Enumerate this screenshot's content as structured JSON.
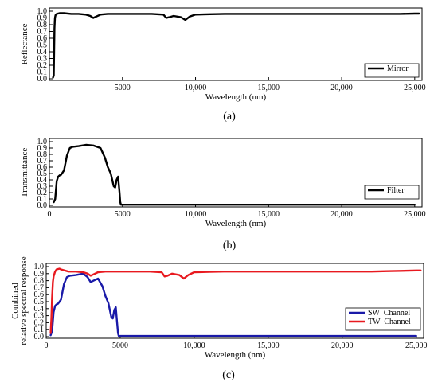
{
  "chart_data": [
    {
      "type": "line",
      "panel_label": "(a)",
      "xlabel": "Wavelength (nm)",
      "ylabel": "Reflectance",
      "xlim": [
        0,
        25500
      ],
      "ylim": [
        0,
        1.0
      ],
      "xticks": [
        5000,
        10000,
        15000,
        20000,
        25000
      ],
      "xtick_labels": [
        "5000",
        "10,000",
        "15,000",
        "20,000",
        "25,000"
      ],
      "yticks": [
        0,
        0.1,
        0.2,
        0.3,
        0.4,
        0.5,
        0.6,
        0.7,
        0.8,
        0.9,
        1.0
      ],
      "ytick_labels": [
        "0.0",
        "0.1",
        "0.2",
        "0.3",
        "0.4",
        "0.5",
        "0.6",
        "0.7",
        "0.8",
        "0.9",
        "1.0"
      ],
      "grid": false,
      "legend_position": "bottom-right",
      "series": [
        {
          "name": "Mirror",
          "color": "#000000",
          "x": [
            250,
            300,
            320,
            350,
            380,
            420,
            500,
            700,
            1000,
            1500,
            2000,
            2500,
            2800,
            3000,
            3200,
            3500,
            4000,
            5000,
            6000,
            7000,
            7800,
            8000,
            8200,
            8500,
            9000,
            9300,
            9600,
            10000,
            11000,
            12000,
            13000,
            14000,
            15000,
            16000,
            17000,
            18000,
            19000,
            20000,
            21000,
            22000,
            23000,
            24000,
            25000,
            25300
          ],
          "y": [
            0.02,
            0.05,
            0.35,
            0.75,
            0.9,
            0.94,
            0.96,
            0.97,
            0.97,
            0.96,
            0.96,
            0.95,
            0.93,
            0.9,
            0.92,
            0.95,
            0.96,
            0.96,
            0.96,
            0.96,
            0.95,
            0.9,
            0.91,
            0.93,
            0.91,
            0.87,
            0.92,
            0.95,
            0.955,
            0.96,
            0.96,
            0.96,
            0.96,
            0.96,
            0.96,
            0.96,
            0.96,
            0.96,
            0.96,
            0.96,
            0.96,
            0.96,
            0.965,
            0.965
          ]
        }
      ]
    },
    {
      "type": "line",
      "panel_label": "(b)",
      "xlabel": "Wavelength (nm)",
      "ylabel": "Transmittance",
      "xlim": [
        0,
        25500
      ],
      "ylim": [
        0,
        1.0
      ],
      "xticks": [
        0,
        5000,
        10000,
        15000,
        20000,
        25000
      ],
      "xtick_labels": [
        "0",
        "5000",
        "10,000",
        "15,000",
        "20,000",
        "25,000"
      ],
      "yticks": [
        0,
        0.1,
        0.2,
        0.3,
        0.4,
        0.5,
        0.6,
        0.7,
        0.8,
        0.9,
        1.0
      ],
      "ytick_labels": [
        "0.0",
        "0.1",
        "0.2",
        "0.3",
        "0.4",
        "0.5",
        "0.6",
        "0.7",
        "0.8",
        "0.9",
        "1.0"
      ],
      "grid": false,
      "legend_position": "bottom-right",
      "series": [
        {
          "name": "Filter",
          "color": "#000000",
          "x": [
            300,
            400,
            500,
            600,
            700,
            800,
            1000,
            1200,
            1400,
            1600,
            2000,
            2500,
            3000,
            3500,
            3800,
            4000,
            4200,
            4400,
            4500,
            4600,
            4700,
            4800,
            4850,
            4900,
            5000,
            6000,
            10000,
            15000,
            20000,
            25000
          ],
          "y": [
            0.05,
            0.1,
            0.38,
            0.45,
            0.47,
            0.48,
            0.55,
            0.78,
            0.9,
            0.92,
            0.93,
            0.95,
            0.94,
            0.9,
            0.75,
            0.6,
            0.5,
            0.3,
            0.28,
            0.4,
            0.45,
            0.2,
            0.05,
            0.01,
            0.01,
            0.01,
            0.01,
            0.01,
            0.01,
            0.01
          ]
        }
      ]
    },
    {
      "type": "line",
      "panel_label": "(c)",
      "xlabel": "Wavelength (nm)",
      "ylabel_lines": [
        "Combined",
        "relative spectral response"
      ],
      "xlim": [
        0,
        25500
      ],
      "ylim": [
        0,
        1.0
      ],
      "xticks": [
        0,
        5000,
        10000,
        15000,
        20000,
        25000
      ],
      "xtick_labels": [
        "0",
        "5000",
        "10,000",
        "15,000",
        "20,000",
        "25,000"
      ],
      "yticks": [
        0,
        0.1,
        0.2,
        0.3,
        0.4,
        0.5,
        0.6,
        0.7,
        0.8,
        0.9,
        1.0
      ],
      "ytick_labels": [
        "0.0",
        "0.1",
        "0.2",
        "0.3",
        "0.4",
        "0.5",
        "0.6",
        "0.7",
        "0.8",
        "0.9",
        "1.0"
      ],
      "grid": false,
      "legend_position": "bottom-right",
      "series": [
        {
          "name": "SW  Channel",
          "color": "#1a1aa8",
          "x": [
            300,
            400,
            500,
            600,
            700,
            800,
            1000,
            1200,
            1400,
            1600,
            2000,
            2500,
            2800,
            3000,
            3200,
            3500,
            3800,
            4000,
            4200,
            4400,
            4500,
            4600,
            4700,
            4800,
            4850,
            4900,
            5000,
            6000,
            10000,
            15000,
            20000,
            25000
          ],
          "y": [
            0.02,
            0.08,
            0.35,
            0.44,
            0.46,
            0.47,
            0.53,
            0.75,
            0.85,
            0.87,
            0.88,
            0.9,
            0.85,
            0.78,
            0.8,
            0.83,
            0.72,
            0.58,
            0.48,
            0.28,
            0.26,
            0.38,
            0.42,
            0.18,
            0.05,
            0.01,
            0.01,
            0.01,
            0.01,
            0.01,
            0.01,
            0.01
          ]
        },
        {
          "name": "TW  Channel",
          "color": "#e8191f",
          "x": [
            300,
            350,
            400,
            450,
            500,
            600,
            700,
            900,
            1000,
            1500,
            2000,
            2500,
            2800,
            3000,
            3200,
            3500,
            4000,
            5000,
            6000,
            7000,
            7800,
            8000,
            8200,
            8500,
            9000,
            9300,
            9600,
            10000,
            11000,
            12000,
            13000,
            14000,
            15000,
            16000,
            17000,
            18000,
            19000,
            20000,
            21000,
            22000,
            23000,
            24000,
            25000,
            25300
          ],
          "y": [
            0.05,
            0.25,
            0.55,
            0.78,
            0.86,
            0.93,
            0.96,
            0.97,
            0.96,
            0.93,
            0.93,
            0.92,
            0.9,
            0.87,
            0.89,
            0.92,
            0.93,
            0.93,
            0.93,
            0.93,
            0.92,
            0.86,
            0.87,
            0.9,
            0.88,
            0.83,
            0.88,
            0.92,
            0.925,
            0.93,
            0.93,
            0.93,
            0.93,
            0.93,
            0.93,
            0.93,
            0.93,
            0.93,
            0.93,
            0.93,
            0.935,
            0.94,
            0.945,
            0.945
          ]
        }
      ]
    }
  ]
}
